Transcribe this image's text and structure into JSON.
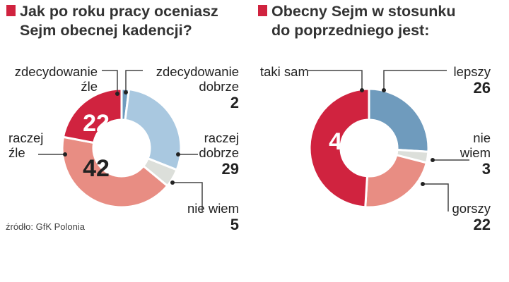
{
  "colors": {
    "accent": "#d0233f",
    "line": "#444444"
  },
  "source": "źródło: GfK Polonia",
  "chart_data": [
    {
      "type": "pie",
      "title_lines": [
        "Jak po roku pracy oceniasz",
        "Sejm obecnej kadencji?"
      ],
      "slices": [
        {
          "label_lines": [
            "zdecydowanie",
            "dobrze"
          ],
          "value": 2,
          "color": "#6f9bbd"
        },
        {
          "label_lines": [
            "raczej",
            "dobrze"
          ],
          "value": 29,
          "color": "#a9c8e0"
        },
        {
          "label_lines": [
            "nie wiem"
          ],
          "value": 5,
          "color": "#dcdfda"
        },
        {
          "label_lines": [
            "raczej",
            "źle"
          ],
          "value": 42,
          "color": "#e88d83"
        },
        {
          "label_lines": [
            "zdecydowanie",
            "źle"
          ],
          "value": 22,
          "color": "#d0233f"
        }
      ]
    },
    {
      "type": "pie",
      "title_lines": [
        "Obecny Sejm w stosunku",
        "do poprzedniego jest:"
      ],
      "slices": [
        {
          "label_lines": [
            "lepszy"
          ],
          "value": 26,
          "color": "#6f9bbd"
        },
        {
          "label_lines": [
            "nie",
            "wiem"
          ],
          "value": 3,
          "color": "#dcdfda"
        },
        {
          "label_lines": [
            "gorszy"
          ],
          "value": 22,
          "color": "#e88d83"
        },
        {
          "label_lines": [
            "taki sam"
          ],
          "value": 49,
          "color": "#d0233f"
        }
      ]
    }
  ]
}
